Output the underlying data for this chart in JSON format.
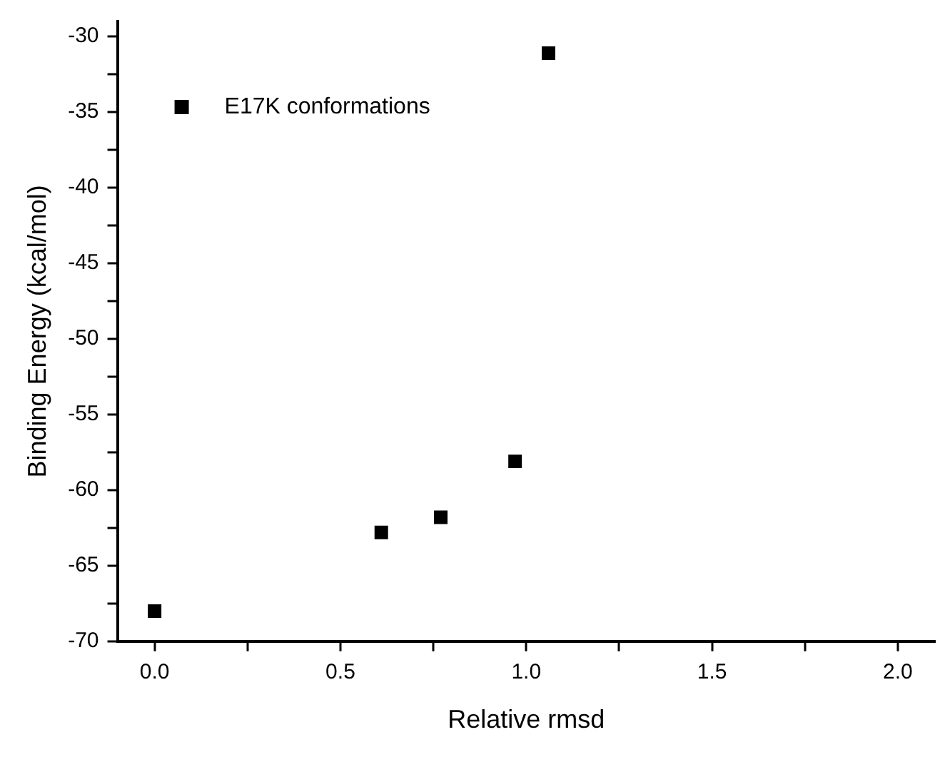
{
  "chart_data": {
    "type": "scatter",
    "xlabel": "Relative rmsd",
    "ylabel": "Binding Energy (kcal/mol)",
    "series": [
      {
        "name": "E17K conformations",
        "color": "#000000",
        "x": [
          0.0,
          0.61,
          0.77,
          0.97,
          1.06
        ],
        "values": [
          -68.0,
          -62.8,
          -61.8,
          -58.1,
          -31.1
        ]
      }
    ],
    "xlim": [
      -0.1,
      2.1
    ],
    "xticks": [
      {
        "value": 0,
        "label": "0.0"
      },
      {
        "value": 0.25,
        "label": null
      },
      0.5,
      {
        "value": 0.75,
        "label": null
      },
      {
        "value": 1,
        "label": "1.0"
      },
      {
        "value": 1.25,
        "label": null
      },
      1.5,
      {
        "value": 1.75,
        "label": null
      },
      {
        "value": 2,
        "label": "2.0"
      }
    ],
    "ylim": [
      -70,
      -29
    ],
    "yticks": [
      -70,
      {
        "value": -67.5,
        "label": null
      },
      -65,
      {
        "value": -62.5,
        "label": null
      },
      -60,
      {
        "value": -57.5,
        "label": null
      },
      -55,
      {
        "value": -52.5,
        "label": null
      },
      -50,
      {
        "value": -47.5,
        "label": null
      },
      -45,
      {
        "value": -42.5,
        "label": null
      },
      -40,
      {
        "value": -37.5,
        "label": null
      },
      -35,
      {
        "value": -32.5,
        "label": null
      },
      -30
    ],
    "legend": "top left",
    "marker": "square"
  }
}
